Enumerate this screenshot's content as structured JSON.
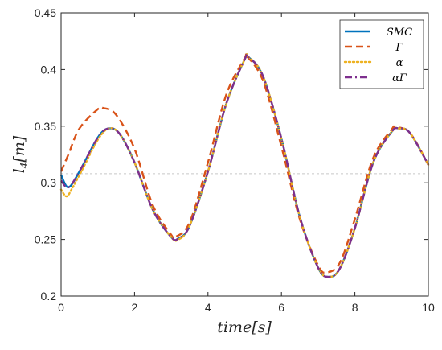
{
  "chart_data": {
    "type": "line",
    "title": "",
    "xlabel": "time[s]",
    "ylabel": "l4[m]",
    "xlim": [
      0,
      10
    ],
    "ylim": [
      0.2,
      0.45
    ],
    "xticks": [
      0,
      2,
      4,
      6,
      8,
      10
    ],
    "yticks": [
      0.2,
      0.25,
      0.3,
      0.35,
      0.4,
      0.45
    ],
    "xtick_labels": [
      "0",
      "2",
      "4",
      "6",
      "8",
      "10"
    ],
    "ytick_labels": [
      "0.2",
      "0.25",
      "0.3",
      "0.35",
      "0.4",
      "0.45"
    ],
    "grid": false,
    "legend_position": "top-right",
    "reference_line": {
      "y": 0.308,
      "style": "dotted",
      "color": "#c8c8c8"
    },
    "series": [
      {
        "name": "SMC",
        "color": "#0072BD",
        "dash": "solid",
        "points": [
          [
            0,
            0.307
          ],
          [
            0.2,
            0.296
          ],
          [
            0.5,
            0.31
          ],
          [
            1,
            0.34
          ],
          [
            1.3,
            0.348
          ],
          [
            1.6,
            0.343
          ],
          [
            2,
            0.318
          ],
          [
            2.5,
            0.276
          ],
          [
            3,
            0.252
          ],
          [
            3.2,
            0.251
          ],
          [
            3.5,
            0.262
          ],
          [
            4,
            0.31
          ],
          [
            4.5,
            0.37
          ],
          [
            5,
            0.409
          ],
          [
            5.1,
            0.411
          ],
          [
            5.5,
            0.394
          ],
          [
            6,
            0.339
          ],
          [
            6.5,
            0.27
          ],
          [
            7,
            0.225
          ],
          [
            7.3,
            0.217
          ],
          [
            7.6,
            0.225
          ],
          [
            8,
            0.26
          ],
          [
            8.5,
            0.318
          ],
          [
            9,
            0.345
          ],
          [
            9.2,
            0.348
          ],
          [
            9.5,
            0.344
          ],
          [
            10,
            0.316
          ]
        ]
      },
      {
        "name": "Γ",
        "color": "#D95319",
        "dash": "dashed",
        "points": [
          [
            0,
            0.31
          ],
          [
            0.2,
            0.325
          ],
          [
            0.5,
            0.348
          ],
          [
            1,
            0.365
          ],
          [
            1.15,
            0.366
          ],
          [
            1.5,
            0.36
          ],
          [
            2,
            0.33
          ],
          [
            2.5,
            0.28
          ],
          [
            3,
            0.254
          ],
          [
            3.1,
            0.252
          ],
          [
            3.5,
            0.265
          ],
          [
            4,
            0.318
          ],
          [
            4.5,
            0.378
          ],
          [
            5,
            0.41
          ],
          [
            5.05,
            0.412
          ],
          [
            5.5,
            0.39
          ],
          [
            6,
            0.332
          ],
          [
            6.5,
            0.268
          ],
          [
            7,
            0.227
          ],
          [
            7.25,
            0.221
          ],
          [
            7.6,
            0.23
          ],
          [
            8,
            0.268
          ],
          [
            8.5,
            0.322
          ],
          [
            9,
            0.347
          ],
          [
            9.1,
            0.349
          ],
          [
            9.5,
            0.344
          ],
          [
            10,
            0.316
          ]
        ]
      },
      {
        "name": "α",
        "color": "#EDB120",
        "dash": "dotted",
        "points": [
          [
            0,
            0.294
          ],
          [
            0.15,
            0.288
          ],
          [
            0.3,
            0.295
          ],
          [
            0.6,
            0.313
          ],
          [
            1,
            0.338
          ],
          [
            1.3,
            0.348
          ],
          [
            1.6,
            0.343
          ],
          [
            2,
            0.318
          ],
          [
            2.5,
            0.276
          ],
          [
            3,
            0.252
          ],
          [
            3.2,
            0.25
          ],
          [
            3.5,
            0.262
          ],
          [
            4,
            0.31
          ],
          [
            4.5,
            0.37
          ],
          [
            5,
            0.409
          ],
          [
            5.1,
            0.411
          ],
          [
            5.5,
            0.394
          ],
          [
            6,
            0.339
          ],
          [
            6.5,
            0.27
          ],
          [
            7,
            0.225
          ],
          [
            7.3,
            0.217
          ],
          [
            7.6,
            0.225
          ],
          [
            8,
            0.26
          ],
          [
            8.5,
            0.318
          ],
          [
            9,
            0.345
          ],
          [
            9.2,
            0.348
          ],
          [
            9.5,
            0.344
          ],
          [
            10,
            0.316
          ]
        ]
      },
      {
        "name": "αΓ",
        "color": "#7E2F8E",
        "dash": "dashdot",
        "points": [
          [
            0,
            0.302
          ],
          [
            0.2,
            0.296
          ],
          [
            0.5,
            0.31
          ],
          [
            1,
            0.34
          ],
          [
            1.3,
            0.348
          ],
          [
            1.6,
            0.343
          ],
          [
            2,
            0.318
          ],
          [
            2.5,
            0.276
          ],
          [
            3,
            0.252
          ],
          [
            3.2,
            0.251
          ],
          [
            3.5,
            0.262
          ],
          [
            4,
            0.31
          ],
          [
            4.5,
            0.37
          ],
          [
            5,
            0.409
          ],
          [
            5.1,
            0.411
          ],
          [
            5.5,
            0.394
          ],
          [
            6,
            0.339
          ],
          [
            6.5,
            0.27
          ],
          [
            7,
            0.225
          ],
          [
            7.3,
            0.217
          ],
          [
            7.6,
            0.225
          ],
          [
            8,
            0.26
          ],
          [
            8.5,
            0.318
          ],
          [
            9,
            0.345
          ],
          [
            9.2,
            0.348
          ],
          [
            9.5,
            0.344
          ],
          [
            10,
            0.316
          ]
        ]
      }
    ]
  }
}
